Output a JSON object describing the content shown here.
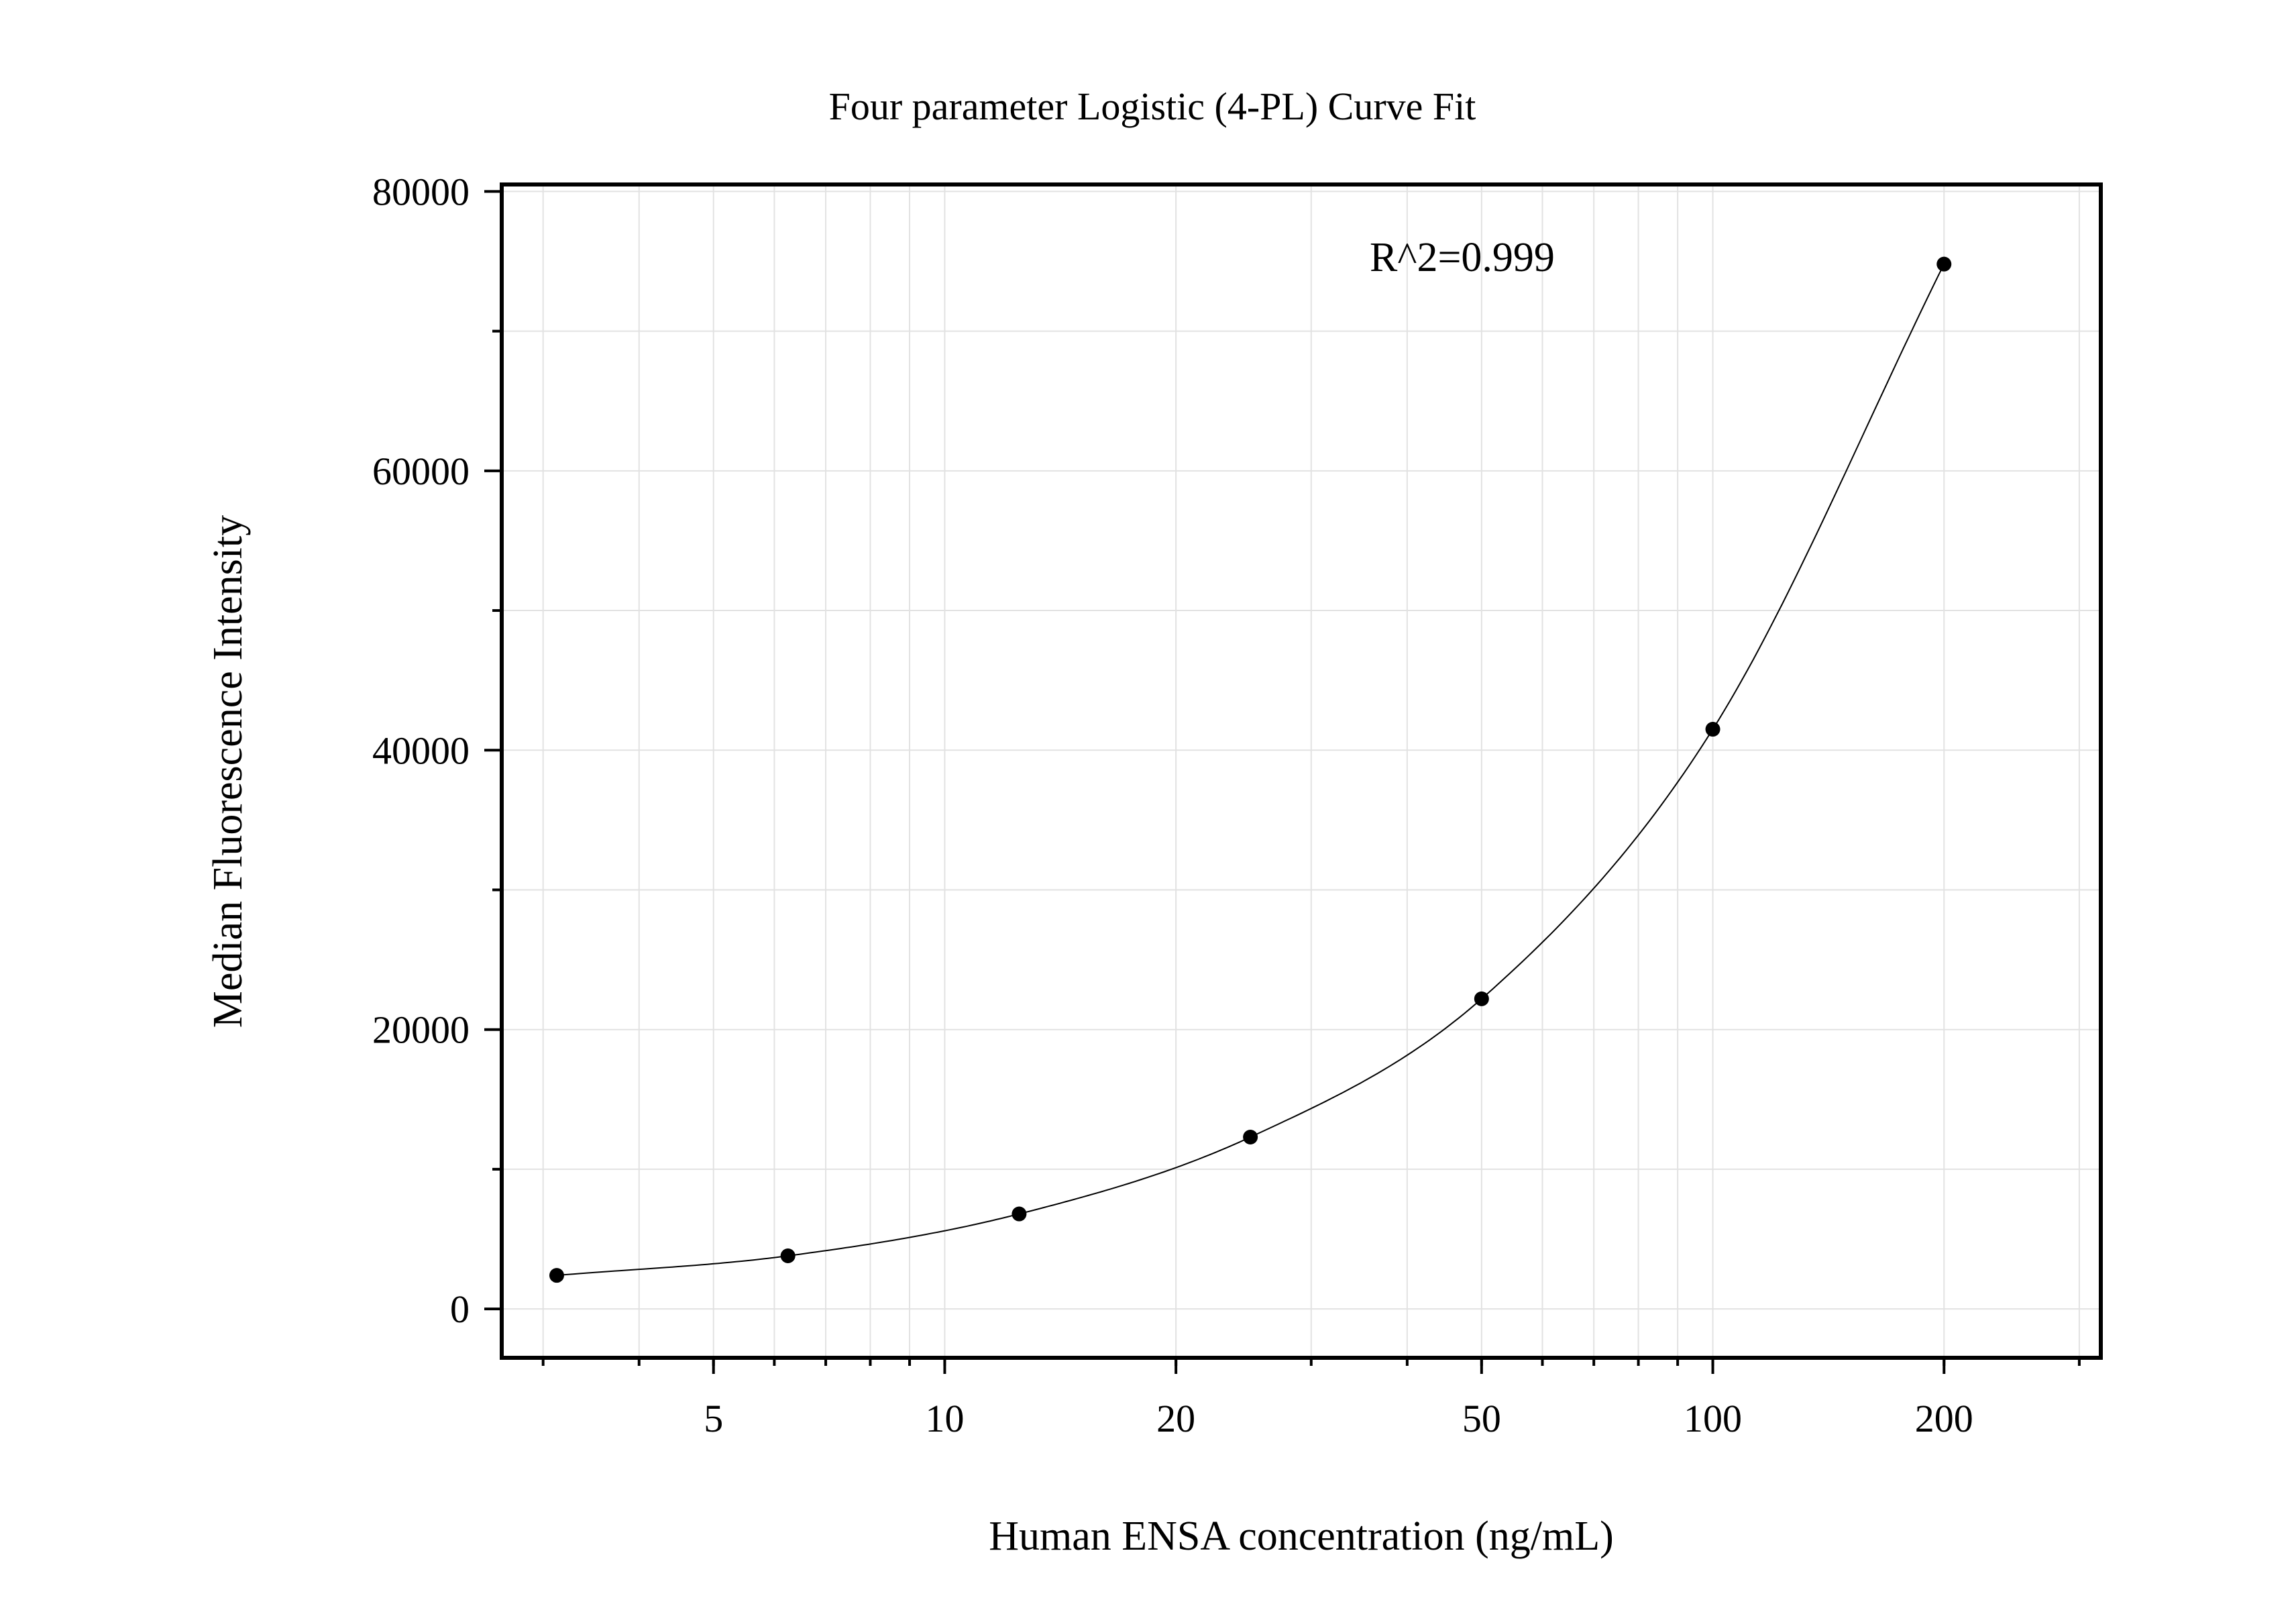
{
  "chart_data": {
    "type": "scatter",
    "title": "Four parameter Logistic (4-PL) Curve Fit",
    "xlabel": "Human ENSA concentration (ng/mL)",
    "ylabel": "Median Fluorescence Intensity",
    "x_scale": "log",
    "xlim": [
      2.65,
      320
    ],
    "ylim": [
      -3500,
      80500
    ],
    "x_ticks": [
      5,
      10,
      20,
      50,
      100,
      200
    ],
    "x_tick_labels": [
      "5",
      "10",
      "20",
      "50",
      "100",
      "200"
    ],
    "y_ticks": [
      0,
      20000,
      40000,
      60000,
      80000
    ],
    "y_tick_labels": [
      "0",
      "20000",
      "40000",
      "60000",
      "80000"
    ],
    "y_minor_ticks": [
      10000,
      30000,
      50000,
      70000
    ],
    "grid": true,
    "annotation": "R^2=0.999",
    "series": [
      {
        "points": [
          {
            "x": 3.125,
            "y": 2400
          },
          {
            "x": 6.25,
            "y": 3800
          },
          {
            "x": 12.5,
            "y": 6800
          },
          {
            "x": 25,
            "y": 12300
          },
          {
            "x": 50,
            "y": 22200
          },
          {
            "x": 100,
            "y": 41500
          },
          {
            "x": 200,
            "y": 74800
          }
        ]
      }
    ],
    "colors": {
      "points": "#000000",
      "curve": "#000000",
      "grid": "#e2e2e2",
      "axes": "#000000"
    }
  }
}
